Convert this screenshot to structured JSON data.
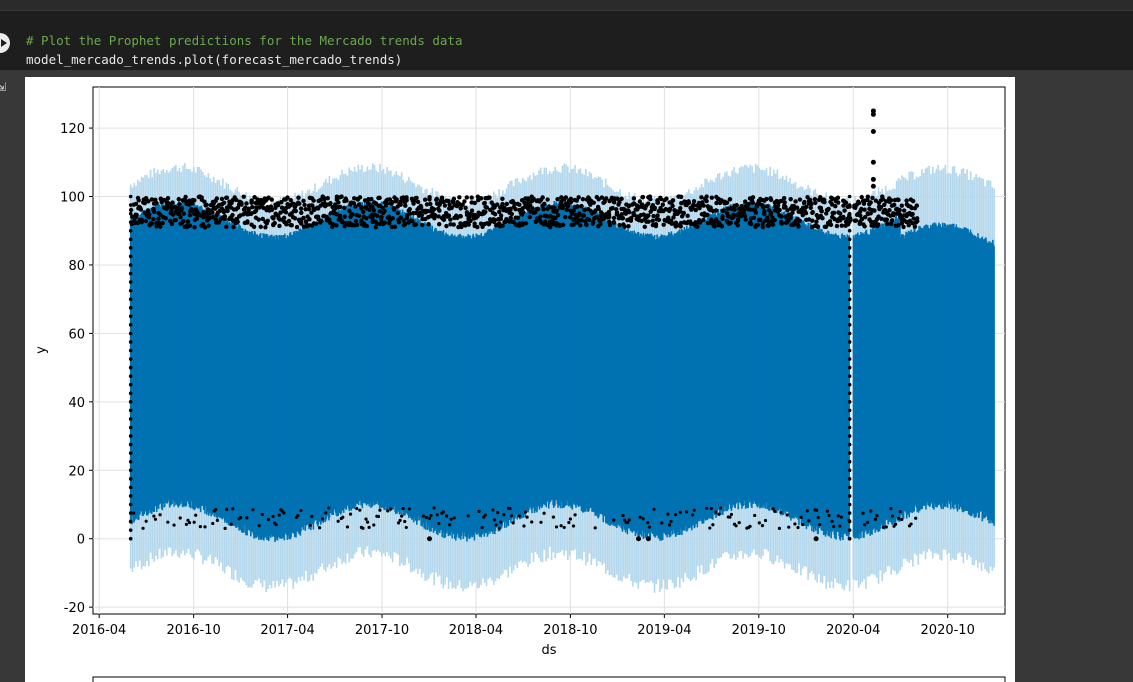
{
  "notebook": {
    "code_comment": "# Plot the Prophet predictions for the Mercado trends data",
    "code_statement": "model_mercado_trends.plot(forecast_mercado_trends)"
  },
  "chart_data": {
    "type": "scatter",
    "xlabel": "ds",
    "ylabel": "y",
    "x_ticks": [
      "2016-04",
      "2016-10",
      "2017-04",
      "2017-10",
      "2018-04",
      "2018-10",
      "2019-04",
      "2019-10",
      "2020-04",
      "2020-10"
    ],
    "y_ticks": [
      "-20",
      "0",
      "20",
      "40",
      "60",
      "80",
      "100",
      "120"
    ],
    "ylim": [
      -22,
      132
    ],
    "xlim": [
      "2016-03-20",
      "2021-01-20"
    ],
    "grid": true,
    "colors": {
      "forecast": "#0072b2",
      "uncertainty": "#b3d7ec",
      "observed": "#000000"
    },
    "series": [
      {
        "role": "observed",
        "x_range": [
          "2016-06-01",
          "2020-07-31"
        ],
        "y_range": [
          0,
          100
        ]
      },
      {
        "role": "forecast",
        "x_range": [
          "2016-06-01",
          "2020-12-31"
        ],
        "y_range": [
          3,
          97
        ]
      },
      {
        "role": "uncertainty",
        "x_range": [
          "2016-06-01",
          "2020-12-31"
        ],
        "y_range": [
          -12,
          104
        ]
      }
    ],
    "outliers": [
      {
        "x": "2020-05-10",
        "y": 125
      },
      {
        "x": "2020-05-10",
        "y": 124
      },
      {
        "x": "2020-05-10",
        "y": 119
      },
      {
        "x": "2020-05-10",
        "y": 110
      },
      {
        "x": "2020-05-10",
        "y": 105
      },
      {
        "x": "2020-05-10",
        "y": 103
      },
      {
        "x": "2018-01-01",
        "y": 0
      },
      {
        "x": "2019-02-10",
        "y": 0
      },
      {
        "x": "2019-03-01",
        "y": 0
      },
      {
        "x": "2020-01-20",
        "y": 0
      }
    ]
  }
}
